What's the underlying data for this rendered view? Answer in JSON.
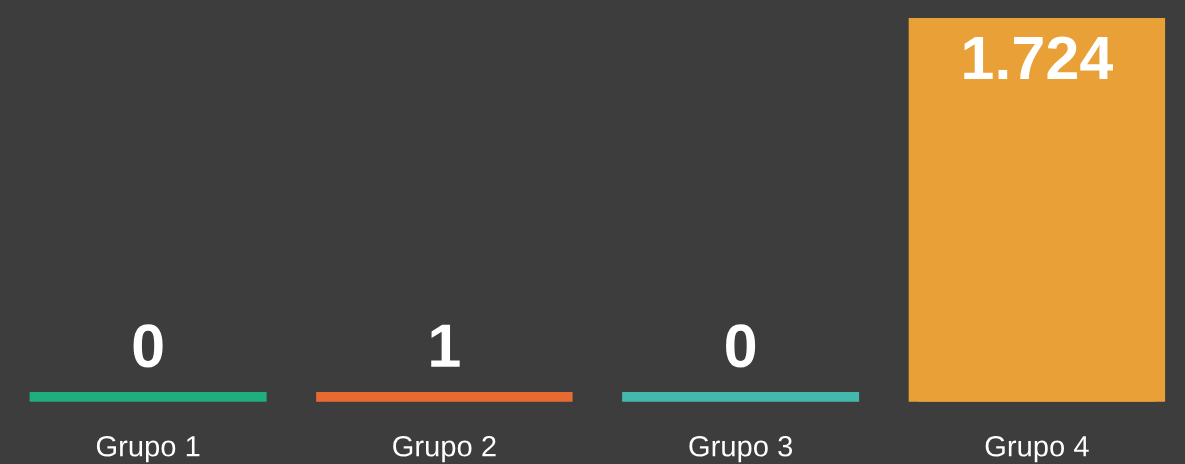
{
  "chart_data": {
    "type": "bar",
    "categories": [
      "Grupo 1",
      "Grupo 2",
      "Grupo 3",
      "Grupo 4"
    ],
    "values": [
      0,
      1,
      0,
      1724
    ],
    "colors": [
      "#1fae7d",
      "#e86a33",
      "#45b8ad",
      "#e8a037"
    ],
    "value_labels": [
      "0",
      "1",
      "0",
      "1.724"
    ],
    "grid": false,
    "legend": false
  }
}
